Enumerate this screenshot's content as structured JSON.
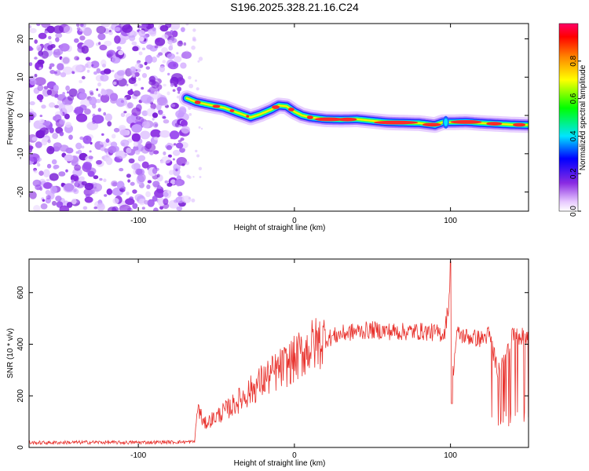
{
  "title": "S196.2025.328.21.16.C24",
  "chart_data": [
    {
      "type": "heatmap",
      "xlabel": "Height of straight line (km)",
      "ylabel": "Frequency (Hz)",
      "xlim": [
        -170,
        150
      ],
      "ylim": [
        -25,
        24
      ],
      "xticks": [
        -100,
        0,
        100
      ],
      "yticks": [
        -20,
        -10,
        0,
        10,
        20
      ],
      "noise_region_x": [
        -170,
        -69
      ],
      "ridge": {
        "x": [
          -69,
          -63,
          -55,
          -45,
          -35,
          -28,
          -22,
          -15,
          -10,
          -5,
          0,
          5,
          10,
          20,
          30,
          40,
          60,
          80,
          90,
          95,
          100,
          110,
          120,
          130,
          140,
          150
        ],
        "freq": [
          4.5,
          3.5,
          2.8,
          2.0,
          0.5,
          -0.5,
          0.3,
          1.5,
          2.6,
          2.4,
          1.0,
          0.0,
          -0.5,
          -1.0,
          -1.1,
          -1.0,
          -1.8,
          -2.0,
          -2.5,
          -1.8,
          -1.8,
          -1.7,
          -2.0,
          -2.2,
          -2.4,
          -2.5
        ]
      },
      "colorbar": {
        "label": "Normalized spectral amplitude",
        "range": [
          0,
          1
        ],
        "ticks": [
          "0.0",
          "0.2",
          "0.4",
          "0.6",
          "0.8"
        ]
      }
    },
    {
      "type": "line",
      "xlabel": "Height of straight line (km)",
      "ylabel": "SNR (10 * v/v)",
      "xlim": [
        -170,
        150
      ],
      "ylim": [
        0,
        730
      ],
      "xticks": [
        -100,
        0,
        100
      ],
      "yticks": [
        0,
        200,
        400,
        600
      ],
      "series": [
        {
          "name": "SNR",
          "color": "#e8322d",
          "x": [
            -170,
            -150,
            -130,
            -110,
            -90,
            -75,
            -64,
            -62,
            -58,
            -50,
            -40,
            -30,
            -20,
            -10,
            0,
            10,
            20,
            30,
            40,
            50,
            60,
            70,
            80,
            90,
            96,
            99,
            100,
            101,
            104,
            110,
            120,
            125,
            130,
            140,
            150
          ],
          "y": [
            18,
            19,
            20,
            19,
            20,
            21,
            22,
            160,
            90,
            120,
            160,
            210,
            260,
            300,
            340,
            390,
            420,
            440,
            450,
            455,
            450,
            448,
            450,
            445,
            440,
            560,
            700,
            250,
            440,
            430,
            420,
            440,
            300,
            430,
            430
          ]
        }
      ]
    }
  ]
}
